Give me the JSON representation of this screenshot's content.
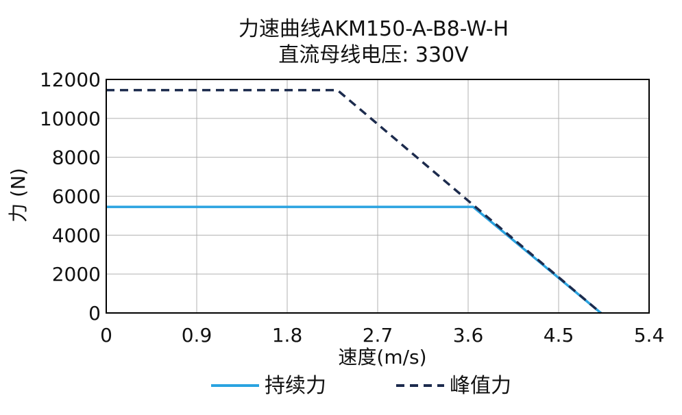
{
  "chart_data": {
    "type": "line",
    "title_line1": "力速曲线AKM150-A-B8-W-H",
    "title_line2": "直流母线电压: 330V",
    "xlabel": "速度(m/s)",
    "ylabel": "力 (N)",
    "xlim": [
      0,
      5.4
    ],
    "ylim": [
      0,
      12000
    ],
    "x_ticks": [
      "0",
      "0.9",
      "1.8",
      "2.7",
      "3.6",
      "4.5",
      "5.4"
    ],
    "y_ticks": [
      "0",
      "2000",
      "4000",
      "6000",
      "8000",
      "10000",
      "12000"
    ],
    "grid": true,
    "legend_position": "bottom",
    "series": [
      {
        "name": "持续力",
        "color": "#2aa3e0",
        "style": "solid",
        "x": [
          0,
          3.65,
          4.92
        ],
        "y": [
          5450,
          5450,
          0
        ]
      },
      {
        "name": "峰值力",
        "color": "#1c2b4d",
        "style": "dashed",
        "x": [
          0,
          2.3,
          4.92
        ],
        "y": [
          11450,
          11450,
          0
        ]
      }
    ]
  }
}
